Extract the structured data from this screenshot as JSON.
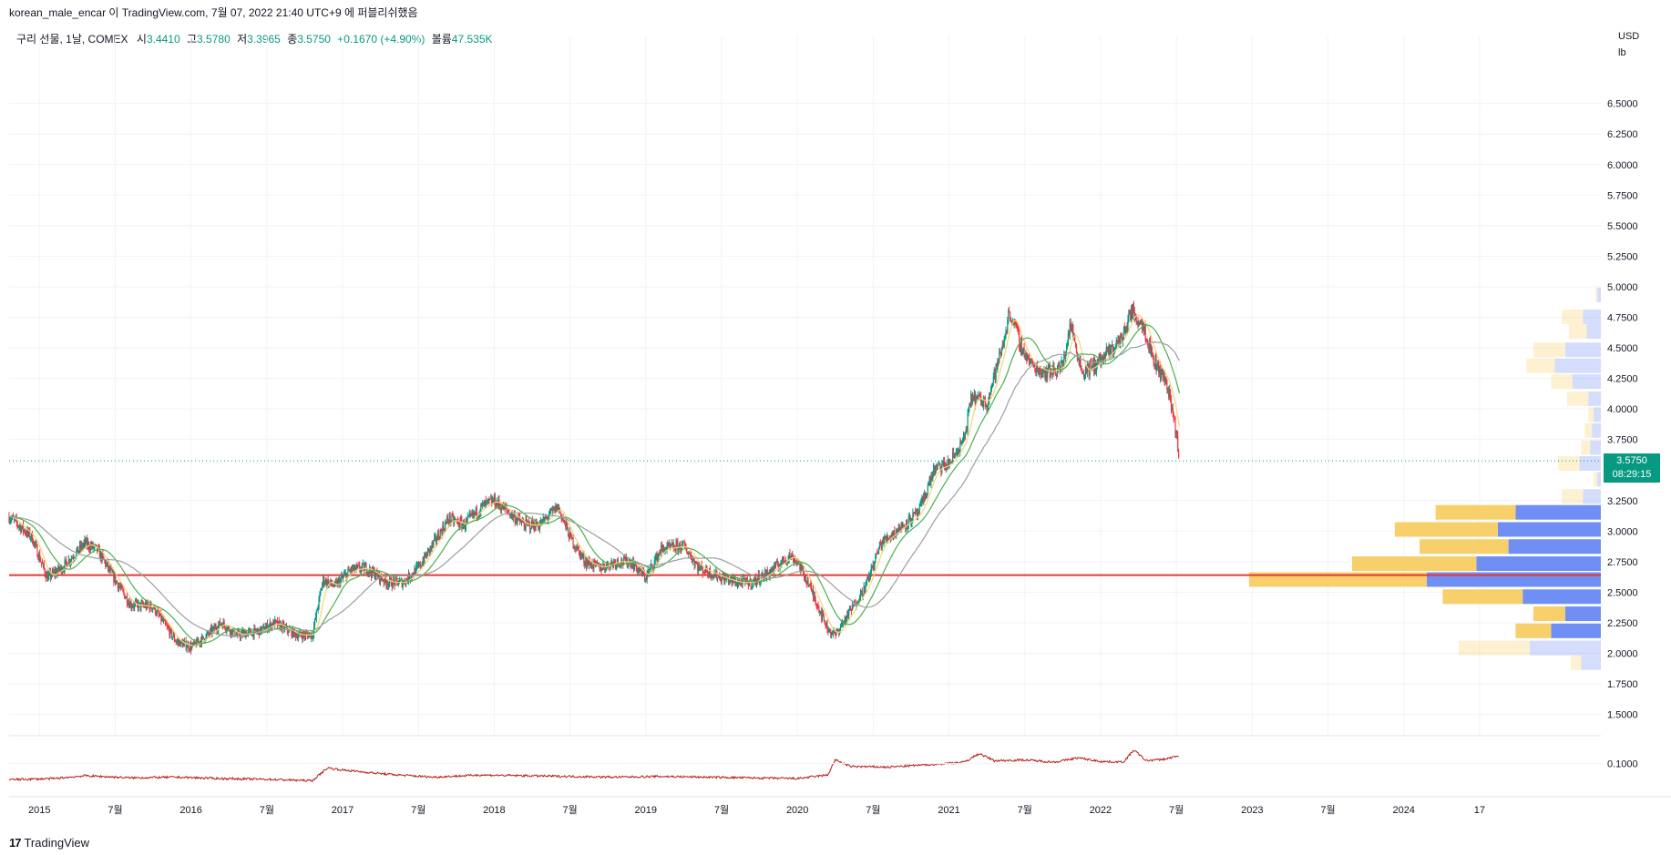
{
  "header": {
    "publisher_line": "korean_male_encar 이 TradingView.com, 7월 07, 2022 21:40 UTC+9 에 퍼블리쉬했음"
  },
  "legend": {
    "symbol": "구리 선물, 1날, COMEX",
    "open_label": "시",
    "open": "3.4410",
    "high_label": "고",
    "high": "3.5780",
    "low_label": "저",
    "low": "3.3965",
    "close_label": "종",
    "close": "3.5750",
    "change": "+0.1670 (+4.90%)",
    "volume_label": "볼륨",
    "volume": "47.535K"
  },
  "axis_units": {
    "currency": "USD",
    "unit": "lb"
  },
  "price_tag": {
    "price": "3.5750",
    "countdown": "08:29:15"
  },
  "footer": {
    "logo_glyph": "17",
    "brand": "TradingView"
  },
  "colors": {
    "up": "#089981",
    "down": "#f23645",
    "ma_fast": "#f5d76e",
    "ma_mid": "#4caf50",
    "ma_slow": "#9e9e9e",
    "support_line": "#e53935",
    "vp_up": "#6f8ff5",
    "vp_down": "#f7cf6b",
    "indicator": "#b71c1c",
    "grid": "#f0f3fa"
  },
  "chart_data": {
    "type": "candlestick",
    "y_axis_ticks": [
      "6.5000",
      "6.2500",
      "6.0000",
      "5.7500",
      "5.5000",
      "5.2500",
      "5.0000",
      "4.7500",
      "4.5000",
      "4.2500",
      "4.0000",
      "3.7500",
      "3.2500",
      "3.0000",
      "2.7500",
      "2.5000",
      "2.2500",
      "2.0000",
      "1.7500",
      "1.5000"
    ],
    "ylim": [
      1.4,
      6.9
    ],
    "x_axis_labels": [
      {
        "label": "2015",
        "t": 2015.0
      },
      {
        "label": "7월",
        "t": 2015.5
      },
      {
        "label": "2016",
        "t": 2016.0
      },
      {
        "label": "7월",
        "t": 2016.5
      },
      {
        "label": "2017",
        "t": 2017.0
      },
      {
        "label": "7월",
        "t": 2017.5
      },
      {
        "label": "2018",
        "t": 2018.0
      },
      {
        "label": "7월",
        "t": 2018.5
      },
      {
        "label": "2019",
        "t": 2019.0
      },
      {
        "label": "7월",
        "t": 2019.5
      },
      {
        "label": "2020",
        "t": 2020.0
      },
      {
        "label": "7월",
        "t": 2020.5
      },
      {
        "label": "2021",
        "t": 2021.0
      },
      {
        "label": "7월",
        "t": 2021.5
      },
      {
        "label": "2022",
        "t": 2022.0
      },
      {
        "label": "7월",
        "t": 2022.5
      },
      {
        "label": "2023",
        "t": 2023.0
      },
      {
        "label": "7월",
        "t": 2023.5
      },
      {
        "label": "2024",
        "t": 2024.0
      },
      {
        "label": "17",
        "t": 2024.5
      }
    ],
    "xlim": [
      2014.8,
      2025.3
    ],
    "price_path": [
      [
        2014.8,
        3.12
      ],
      [
        2014.95,
        2.95
      ],
      [
        2015.05,
        2.62
      ],
      [
        2015.15,
        2.7
      ],
      [
        2015.3,
        2.9
      ],
      [
        2015.38,
        2.85
      ],
      [
        2015.5,
        2.6
      ],
      [
        2015.6,
        2.4
      ],
      [
        2015.75,
        2.38
      ],
      [
        2015.9,
        2.1
      ],
      [
        2016.0,
        2.05
      ],
      [
        2016.08,
        2.12
      ],
      [
        2016.2,
        2.25
      ],
      [
        2016.3,
        2.15
      ],
      [
        2016.45,
        2.18
      ],
      [
        2016.55,
        2.25
      ],
      [
        2016.7,
        2.15
      ],
      [
        2016.8,
        2.15
      ],
      [
        2016.87,
        2.6
      ],
      [
        2016.95,
        2.55
      ],
      [
        2017.05,
        2.68
      ],
      [
        2017.15,
        2.7
      ],
      [
        2017.3,
        2.58
      ],
      [
        2017.4,
        2.58
      ],
      [
        2017.5,
        2.7
      ],
      [
        2017.6,
        2.9
      ],
      [
        2017.7,
        3.1
      ],
      [
        2017.8,
        3.05
      ],
      [
        2017.92,
        3.2
      ],
      [
        2018.0,
        3.25
      ],
      [
        2018.1,
        3.15
      ],
      [
        2018.2,
        3.05
      ],
      [
        2018.3,
        3.05
      ],
      [
        2018.42,
        3.2
      ],
      [
        2018.5,
        2.95
      ],
      [
        2018.6,
        2.75
      ],
      [
        2018.7,
        2.7
      ],
      [
        2018.8,
        2.75
      ],
      [
        2018.9,
        2.75
      ],
      [
        2019.0,
        2.62
      ],
      [
        2019.1,
        2.85
      ],
      [
        2019.25,
        2.88
      ],
      [
        2019.35,
        2.7
      ],
      [
        2019.5,
        2.62
      ],
      [
        2019.6,
        2.58
      ],
      [
        2019.7,
        2.58
      ],
      [
        2019.8,
        2.65
      ],
      [
        2019.95,
        2.8
      ],
      [
        2020.0,
        2.75
      ],
      [
        2020.08,
        2.55
      ],
      [
        2020.2,
        2.2
      ],
      [
        2020.25,
        2.15
      ],
      [
        2020.35,
        2.35
      ],
      [
        2020.45,
        2.55
      ],
      [
        2020.55,
        2.9
      ],
      [
        2020.7,
        3.05
      ],
      [
        2020.8,
        3.15
      ],
      [
        2020.9,
        3.5
      ],
      [
        2021.0,
        3.55
      ],
      [
        2021.1,
        3.75
      ],
      [
        2021.15,
        4.1
      ],
      [
        2021.25,
        4.05
      ],
      [
        2021.35,
        4.5
      ],
      [
        2021.4,
        4.8
      ],
      [
        2021.48,
        4.5
      ],
      [
        2021.55,
        4.35
      ],
      [
        2021.65,
        4.3
      ],
      [
        2021.75,
        4.35
      ],
      [
        2021.8,
        4.7
      ],
      [
        2021.88,
        4.3
      ],
      [
        2021.95,
        4.35
      ],
      [
        2022.05,
        4.45
      ],
      [
        2022.15,
        4.6
      ],
      [
        2022.2,
        4.8
      ],
      [
        2022.28,
        4.7
      ],
      [
        2022.35,
        4.4
      ],
      [
        2022.42,
        4.25
      ],
      [
        2022.45,
        4.15
      ],
      [
        2022.5,
        3.8
      ],
      [
        2022.52,
        3.58
      ]
    ],
    "moving_averages": [
      {
        "name": "ma_fast",
        "lag": 0.06
      },
      {
        "name": "ma_mid",
        "lag": 0.18
      },
      {
        "name": "ma_slow",
        "lag": 0.4
      }
    ],
    "support_line": 2.64,
    "last_price": 3.575,
    "volume_profile": [
      {
        "price": 4.93,
        "up": 0.02,
        "down": 0.01,
        "faded": true
      },
      {
        "price": 4.75,
        "up": 0.1,
        "down": 0.12,
        "faded": true
      },
      {
        "price": 4.63,
        "up": 0.08,
        "down": 0.1,
        "faded": true
      },
      {
        "price": 4.48,
        "up": 0.2,
        "down": 0.18,
        "faded": true
      },
      {
        "price": 4.35,
        "up": 0.26,
        "down": 0.16,
        "faded": true
      },
      {
        "price": 4.22,
        "up": 0.16,
        "down": 0.12,
        "faded": true
      },
      {
        "price": 4.08,
        "up": 0.07,
        "down": 0.12,
        "faded": true
      },
      {
        "price": 3.95,
        "up": 0.04,
        "down": 0.03,
        "faded": true
      },
      {
        "price": 3.82,
        "up": 0.05,
        "down": 0.04,
        "faded": true
      },
      {
        "price": 3.68,
        "up": 0.06,
        "down": 0.05,
        "faded": true
      },
      {
        "price": 3.55,
        "up": 0.12,
        "down": 0.12,
        "faded": true
      },
      {
        "price": 3.42,
        "up": 0.02,
        "down": 0.02,
        "faded": true
      },
      {
        "price": 3.28,
        "up": 0.1,
        "down": 0.12,
        "faded": true
      },
      {
        "price": 3.15,
        "up": 0.48,
        "down": 0.45
      },
      {
        "price": 3.01,
        "up": 0.58,
        "down": 0.58
      },
      {
        "price": 2.87,
        "up": 0.52,
        "down": 0.5
      },
      {
        "price": 2.73,
        "up": 0.7,
        "down": 0.7
      },
      {
        "price": 2.6,
        "up": 0.98,
        "down": 1.0
      },
      {
        "price": 2.46,
        "up": 0.44,
        "down": 0.45
      },
      {
        "price": 2.32,
        "up": 0.2,
        "down": 0.18
      },
      {
        "price": 2.18,
        "up": 0.28,
        "down": 0.2
      },
      {
        "price": 2.04,
        "up": 0.4,
        "down": 0.4,
        "faded": true
      },
      {
        "price": 1.92,
        "up": 0.11,
        "down": 0.06,
        "faded": true
      }
    ],
    "indicator": {
      "ticks": [
        "0.1000"
      ],
      "ylim": [
        0.02,
        0.16
      ],
      "path": [
        [
          2014.8,
          0.055
        ],
        [
          2015.1,
          0.058
        ],
        [
          2015.3,
          0.066
        ],
        [
          2015.6,
          0.06
        ],
        [
          2015.9,
          0.062
        ],
        [
          2016.2,
          0.058
        ],
        [
          2016.5,
          0.056
        ],
        [
          2016.8,
          0.052
        ],
        [
          2016.9,
          0.088
        ],
        [
          2017.0,
          0.082
        ],
        [
          2017.3,
          0.07
        ],
        [
          2017.6,
          0.062
        ],
        [
          2017.9,
          0.068
        ],
        [
          2018.2,
          0.066
        ],
        [
          2018.5,
          0.064
        ],
        [
          2018.8,
          0.062
        ],
        [
          2019.1,
          0.064
        ],
        [
          2019.4,
          0.062
        ],
        [
          2019.7,
          0.06
        ],
        [
          2020.0,
          0.058
        ],
        [
          2020.2,
          0.068
        ],
        [
          2020.25,
          0.11
        ],
        [
          2020.35,
          0.092
        ],
        [
          2020.6,
          0.09
        ],
        [
          2020.9,
          0.098
        ],
        [
          2021.1,
          0.104
        ],
        [
          2021.2,
          0.128
        ],
        [
          2021.3,
          0.108
        ],
        [
          2021.5,
          0.11
        ],
        [
          2021.7,
          0.104
        ],
        [
          2021.85,
          0.116
        ],
        [
          2022.0,
          0.106
        ],
        [
          2022.15,
          0.104
        ],
        [
          2022.22,
          0.138
        ],
        [
          2022.3,
          0.108
        ],
        [
          2022.42,
          0.112
        ],
        [
          2022.52,
          0.122
        ]
      ]
    }
  }
}
